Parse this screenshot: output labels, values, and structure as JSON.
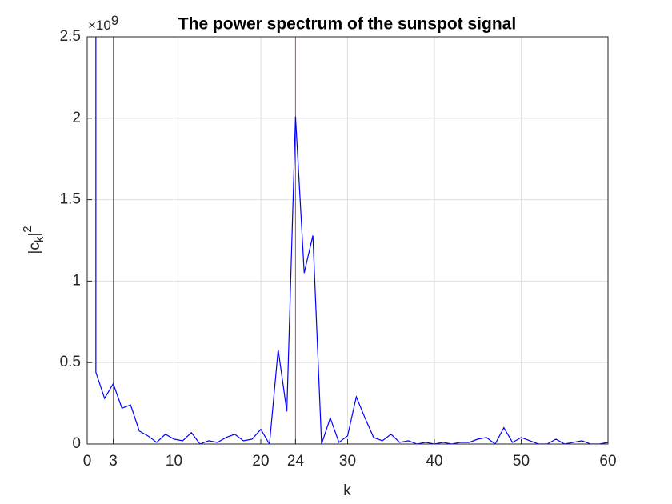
{
  "chart_data": {
    "type": "line",
    "title": "The power spectrum of the sunspot signal",
    "xlabel": "k",
    "ylabel": [
      "|c",
      "k",
      "|",
      "2"
    ],
    "y_exponent": [
      "×10",
      "9"
    ],
    "x": [
      1,
      1,
      2,
      3,
      4,
      5,
      6,
      7,
      8,
      9,
      10,
      11,
      12,
      13,
      14,
      15,
      16,
      17,
      18,
      19,
      20,
      21,
      22,
      23,
      24,
      25,
      26,
      27,
      28,
      29,
      30,
      31,
      32,
      33,
      34,
      35,
      36,
      37,
      38,
      39,
      40,
      41,
      42,
      43,
      44,
      45,
      46,
      47,
      48,
      49,
      50,
      51,
      52,
      53,
      54,
      55,
      56,
      57,
      58,
      59,
      60
    ],
    "series": [
      {
        "color": "#0000ff",
        "values": [
          2.6,
          0.44,
          0.28,
          0.37,
          0.22,
          0.24,
          0.08,
          0.05,
          0.01,
          0.06,
          0.03,
          0.02,
          0.07,
          0.0,
          0.02,
          0.01,
          0.04,
          0.06,
          0.02,
          0.03,
          0.09,
          0.0,
          0.58,
          0.2,
          2.01,
          1.05,
          1.28,
          0.0,
          0.16,
          0.01,
          0.05,
          0.29,
          0.16,
          0.04,
          0.02,
          0.06,
          0.01,
          0.02,
          0.0,
          0.01,
          0.0,
          0.01,
          0.0,
          0.01,
          0.01,
          0.03,
          0.04,
          0.0,
          0.1,
          0.01,
          0.04,
          0.02,
          0.0,
          0.0,
          0.03,
          0.0,
          0.01,
          0.02,
          0.0,
          0.0,
          0.01
        ]
      }
    ],
    "markers": {
      "x": [
        3,
        24
      ],
      "color": "#c0504d"
    },
    "xlim": [
      0,
      60
    ],
    "xticks": [
      0,
      3,
      10,
      20,
      24,
      30,
      40,
      50,
      60
    ],
    "ylim": [
      0,
      2.5
    ],
    "yticks": [
      0,
      0.5,
      1,
      1.5,
      2,
      2.5
    ],
    "grid": true
  }
}
